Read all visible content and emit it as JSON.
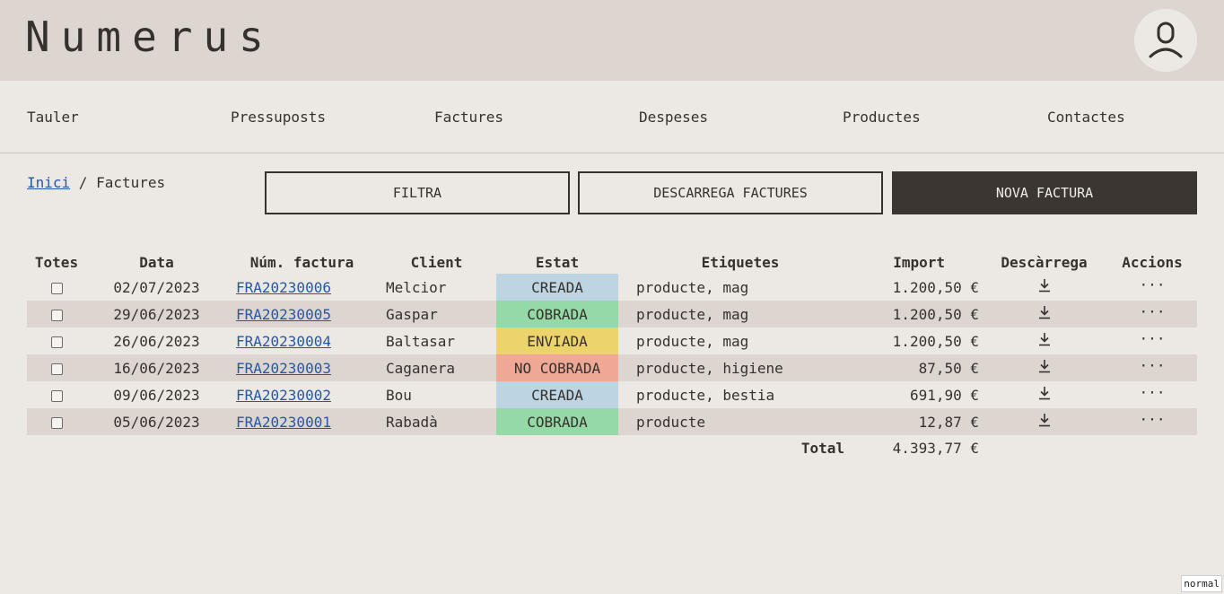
{
  "app": {
    "logo": "Numerus"
  },
  "nav": {
    "items": [
      {
        "label": "Tauler"
      },
      {
        "label": "Pressuposts"
      },
      {
        "label": "Factures"
      },
      {
        "label": "Despeses"
      },
      {
        "label": "Productes"
      },
      {
        "label": "Contactes"
      }
    ]
  },
  "breadcrumb": {
    "home": "Inici",
    "separator": " / ",
    "current": "Factures"
  },
  "actions": {
    "filter": "FILTRA",
    "download": "DESCARREGA FACTURES",
    "new": "NOVA FACTURA"
  },
  "table": {
    "headers": {
      "all": "Totes",
      "date": "Data",
      "number": "Núm. factura",
      "client": "Client",
      "status": "Estat",
      "tags": "Etiquetes",
      "amount": "Import",
      "download": "Descàrrega",
      "actions": "Accions"
    },
    "rows": [
      {
        "date": "02/07/2023",
        "number": "FRA20230006",
        "client": "Melcior",
        "status": "CREADA",
        "tags": "producte, mag",
        "amount": "1.200,50 €"
      },
      {
        "date": "29/06/2023",
        "number": "FRA20230005",
        "client": "Gaspar",
        "status": "COBRADA",
        "tags": "producte, mag",
        "amount": "1.200,50 €"
      },
      {
        "date": "26/06/2023",
        "number": "FRA20230004",
        "client": "Baltasar",
        "status": "ENVIADA",
        "tags": "producte, mag",
        "amount": "1.200,50 €"
      },
      {
        "date": "16/06/2023",
        "number": "FRA20230003",
        "client": "Caganera",
        "status": "NO COBRADA",
        "tags": "producte, higiene",
        "amount": "87,50 €"
      },
      {
        "date": "09/06/2023",
        "number": "FRA20230002",
        "client": "Bou",
        "status": "CREADA",
        "tags": "producte, bestia",
        "amount": "691,90 €"
      },
      {
        "date": "05/06/2023",
        "number": "FRA20230001",
        "client": "Rabadà",
        "status": "COBRADA",
        "tags": "producte",
        "amount": "12,87 €"
      }
    ],
    "total_label": "Total",
    "total_amount": "4.393,77 €"
  },
  "status_colors": {
    "CREADA": "#bdd4e3",
    "COBRADA": "#95d9a6",
    "ENVIADA": "#ecd36b",
    "NO COBRADA": "#eea895"
  },
  "icons": {
    "user": "user-icon",
    "download": "download-icon",
    "more": "more-horizontal-icon"
  },
  "mode_badge": "normal"
}
